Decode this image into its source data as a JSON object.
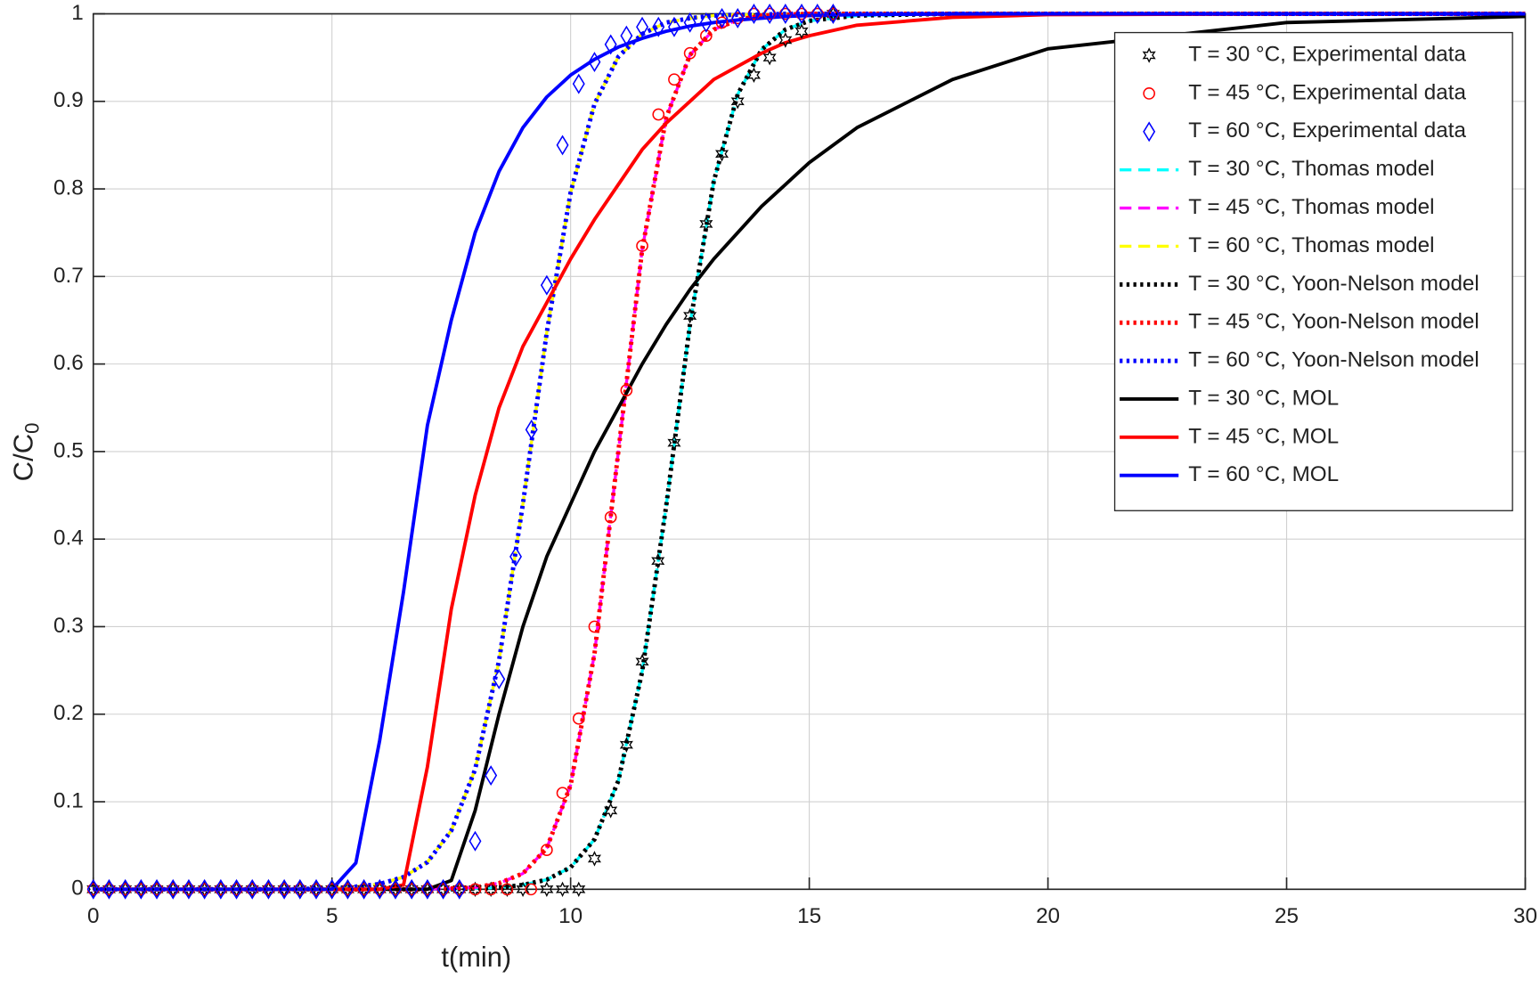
{
  "chart_data": {
    "type": "line",
    "xlabel": "t(min)",
    "ylabel": {
      "text": "C/C",
      "subscript": "0"
    },
    "xlim": [
      0,
      30
    ],
    "ylim": [
      0,
      1
    ],
    "xticks": [
      0,
      5,
      10,
      15,
      20,
      25,
      30
    ],
    "yticks": [
      0,
      0.1,
      0.2,
      0.3,
      0.4,
      0.5,
      0.6,
      0.7,
      0.8,
      0.9,
      1
    ],
    "grid": true,
    "legend": "upper right",
    "series": [
      {
        "name": "T = 30 °C, Experimental data",
        "color": "#000000",
        "style": "markers",
        "marker": "star",
        "x": [
          0,
          0.33,
          0.67,
          1,
          1.33,
          1.67,
          2,
          2.33,
          2.67,
          3,
          3.33,
          3.67,
          4,
          4.33,
          4.67,
          5,
          5.33,
          5.67,
          6,
          6.33,
          6.67,
          7,
          7.33,
          7.67,
          8,
          8.33,
          8.67,
          9,
          9.5,
          9.83,
          10.17,
          10.5,
          10.84,
          11.17,
          11.5,
          11.83,
          12.17,
          12.5,
          12.84,
          13.17,
          13.5,
          13.84,
          14.17,
          14.5,
          14.84,
          15.5
        ],
        "values": [
          0,
          0,
          0,
          0,
          0,
          0,
          0,
          0,
          0,
          0,
          0,
          0,
          0,
          0,
          0,
          0,
          0,
          0,
          0,
          0,
          0,
          0,
          0,
          0,
          0,
          0,
          0,
          0,
          0,
          0,
          0,
          0.035,
          0.09,
          0.165,
          0.26,
          0.375,
          0.51,
          0.655,
          0.76,
          0.84,
          0.9,
          0.93,
          0.95,
          0.97,
          0.98,
          1
        ]
      },
      {
        "name": "T = 45 °C, Experimental data",
        "color": "#ff0000",
        "style": "markers",
        "marker": "circle",
        "x": [
          0,
          0.33,
          0.67,
          1,
          1.33,
          1.67,
          2,
          2.33,
          2.67,
          3,
          3.33,
          3.67,
          4,
          4.33,
          4.67,
          5,
          5.33,
          5.67,
          6,
          6.33,
          6.67,
          7,
          7.33,
          7.67,
          8,
          8.33,
          8.67,
          9.17,
          9.5,
          9.83,
          10.17,
          10.5,
          10.84,
          11.17,
          11.5,
          11.84,
          12.17,
          12.5,
          12.84,
          13.17,
          13.5,
          13.84,
          14.17,
          14.5,
          14.84,
          15.17,
          15.5
        ],
        "values": [
          0,
          0,
          0,
          0,
          0,
          0,
          0,
          0,
          0,
          0,
          0,
          0,
          0,
          0,
          0,
          0,
          0,
          0,
          0,
          0,
          0,
          0,
          0,
          0,
          0,
          0,
          0,
          0,
          0.045,
          0.11,
          0.195,
          0.3,
          0.425,
          0.57,
          0.735,
          0.885,
          0.925,
          0.955,
          0.975,
          0.99,
          0.995,
          1,
          1,
          1,
          1,
          1,
          1
        ]
      },
      {
        "name": "T = 60 °C, Experimental data",
        "color": "#0000ff",
        "style": "markers",
        "marker": "diamond",
        "x": [
          0,
          0.33,
          0.67,
          1,
          1.33,
          1.67,
          2,
          2.33,
          2.67,
          3,
          3.33,
          3.67,
          4,
          4.33,
          4.67,
          5,
          5.33,
          5.67,
          6,
          6.33,
          6.67,
          7,
          7.33,
          7.67,
          8,
          8.33,
          8.5,
          8.85,
          9.18,
          9.5,
          9.83,
          10.17,
          10.5,
          10.84,
          11.17,
          11.5,
          11.84,
          12.17,
          12.5,
          12.84,
          13.17,
          13.5,
          13.84,
          14.17,
          14.5,
          14.84,
          15.17,
          15.5
        ],
        "values": [
          0,
          0,
          0,
          0,
          0,
          0,
          0,
          0,
          0,
          0,
          0,
          0,
          0,
          0,
          0,
          0,
          0,
          0,
          0,
          0,
          0,
          0,
          0,
          0,
          0.055,
          0.13,
          0.24,
          0.38,
          0.525,
          0.69,
          0.85,
          0.92,
          0.945,
          0.965,
          0.975,
          0.985,
          0.985,
          0.985,
          0.99,
          0.99,
          0.995,
          0.995,
          1,
          1,
          1,
          1,
          1,
          1
        ]
      },
      {
        "name": "T = 30 °C, Thomas model",
        "color": "#00ffff",
        "style": "dashed",
        "x": [
          0,
          2,
          4,
          5,
          5.5,
          6,
          6.5,
          7,
          7.5,
          8,
          8.5,
          9,
          9.5,
          10,
          10.5,
          11,
          11.5,
          12,
          12.5,
          13,
          13.5,
          14,
          14.5,
          15,
          16,
          18,
          20,
          25,
          30
        ],
        "values": [
          0,
          0,
          0,
          0,
          0,
          0,
          0,
          0,
          0,
          0.001,
          0.002,
          0.005,
          0.011,
          0.025,
          0.057,
          0.124,
          0.249,
          0.437,
          0.645,
          0.809,
          0.908,
          0.959,
          0.982,
          0.992,
          0.998,
          1,
          1,
          1,
          1
        ]
      },
      {
        "name": "T = 45 °C, Thomas model",
        "color": "#ff00ff",
        "style": "dashed",
        "x": [
          0,
          2,
          4,
          5,
          5.5,
          6,
          6.5,
          7,
          7.5,
          8,
          8.5,
          9,
          9.5,
          10,
          10.5,
          11,
          11.5,
          12,
          12.5,
          13,
          13.5,
          14,
          14.5,
          15,
          16,
          18,
          20,
          25,
          30
        ],
        "values": [
          0,
          0,
          0,
          0,
          0,
          0,
          0,
          0,
          0.001,
          0.002,
          0.007,
          0.018,
          0.047,
          0.119,
          0.269,
          0.5,
          0.731,
          0.881,
          0.953,
          0.982,
          0.993,
          0.998,
          0.999,
          1,
          1,
          1,
          1,
          1,
          1
        ]
      },
      {
        "name": "T = 60 °C, Thomas model",
        "color": "#ffff00",
        "style": "dashed",
        "x": [
          0,
          2,
          4,
          5,
          5.5,
          6,
          6.5,
          7,
          7.5,
          8,
          8.5,
          9,
          9.5,
          10,
          10.5,
          11,
          11.5,
          12,
          12.5,
          13,
          13.5,
          14,
          14.5,
          15,
          16,
          18,
          20,
          25,
          30
        ],
        "values": [
          0,
          0,
          0,
          0.001,
          0.003,
          0.006,
          0.014,
          0.031,
          0.067,
          0.137,
          0.261,
          0.44,
          0.636,
          0.796,
          0.897,
          0.951,
          0.977,
          0.99,
          0.995,
          0.998,
          0.999,
          0.999,
          1,
          1,
          1,
          1,
          1,
          1,
          1
        ]
      },
      {
        "name": "T = 30 °C, Yoon-Nelson model",
        "color": "#000000",
        "style": "dotted",
        "x": [
          0,
          2,
          4,
          5,
          5.5,
          6,
          6.5,
          7,
          7.5,
          8,
          8.5,
          9,
          9.5,
          10,
          10.5,
          11,
          11.5,
          12,
          12.5,
          13,
          13.5,
          14,
          14.5,
          15,
          16,
          18,
          20,
          25,
          30
        ],
        "values": [
          0,
          0,
          0,
          0,
          0,
          0,
          0,
          0,
          0,
          0.001,
          0.002,
          0.005,
          0.011,
          0.025,
          0.057,
          0.124,
          0.249,
          0.437,
          0.645,
          0.809,
          0.908,
          0.959,
          0.982,
          0.992,
          0.998,
          1,
          1,
          1,
          1
        ]
      },
      {
        "name": "T = 45 °C, Yoon-Nelson model",
        "color": "#ff0000",
        "style": "dotted",
        "x": [
          0,
          2,
          4,
          5,
          5.5,
          6,
          6.5,
          7,
          7.5,
          8,
          8.5,
          9,
          9.5,
          10,
          10.5,
          11,
          11.5,
          12,
          12.5,
          13,
          13.5,
          14,
          14.5,
          15,
          16,
          18,
          20,
          25,
          30
        ],
        "values": [
          0,
          0,
          0,
          0,
          0,
          0,
          0,
          0,
          0.001,
          0.002,
          0.007,
          0.018,
          0.047,
          0.119,
          0.269,
          0.5,
          0.731,
          0.881,
          0.953,
          0.982,
          0.993,
          0.998,
          0.999,
          1,
          1,
          1,
          1,
          1,
          1
        ]
      },
      {
        "name": "T = 60 °C, Yoon-Nelson model",
        "color": "#0000ff",
        "style": "dotted",
        "x": [
          0,
          2,
          4,
          5,
          5.5,
          6,
          6.5,
          7,
          7.5,
          8,
          8.5,
          9,
          9.5,
          10,
          10.5,
          11,
          11.5,
          12,
          12.5,
          13,
          13.5,
          14,
          14.5,
          15,
          16,
          18,
          20,
          25,
          30
        ],
        "values": [
          0,
          0,
          0,
          0.001,
          0.003,
          0.006,
          0.014,
          0.031,
          0.067,
          0.137,
          0.261,
          0.44,
          0.636,
          0.796,
          0.897,
          0.951,
          0.977,
          0.99,
          0.995,
          0.998,
          0.999,
          0.999,
          1,
          1,
          1,
          1,
          1,
          1,
          1
        ]
      },
      {
        "name": "T = 30 °C, MOL",
        "color": "#000000",
        "style": "solid",
        "x": [
          0,
          2,
          4,
          5,
          5.5,
          6,
          6.5,
          7,
          7.5,
          8,
          8.5,
          9,
          9.5,
          10,
          10.5,
          11,
          11.5,
          12,
          12.5,
          13,
          13.5,
          14,
          14.5,
          15,
          16,
          18,
          20,
          25,
          30
        ],
        "values": [
          0,
          0,
          0,
          0,
          0,
          0,
          0,
          0,
          0.01,
          0.09,
          0.2,
          0.3,
          0.38,
          0.44,
          0.5,
          0.55,
          0.6,
          0.645,
          0.685,
          0.72,
          0.75,
          0.78,
          0.805,
          0.83,
          0.87,
          0.925,
          0.96,
          0.99,
          0.997
        ]
      },
      {
        "name": "T = 45 °C, MOL",
        "color": "#ff0000",
        "style": "solid",
        "x": [
          0,
          2,
          4,
          5,
          5.5,
          6,
          6.5,
          7,
          7.5,
          8,
          8.5,
          9,
          9.5,
          10,
          10.5,
          11,
          11.5,
          12,
          12.5,
          13,
          13.5,
          14,
          14.5,
          15,
          16,
          18,
          20,
          25,
          30
        ],
        "values": [
          0,
          0,
          0,
          0,
          0,
          0,
          0.005,
          0.14,
          0.32,
          0.45,
          0.55,
          0.62,
          0.67,
          0.72,
          0.765,
          0.805,
          0.845,
          0.875,
          0.9,
          0.925,
          0.94,
          0.955,
          0.967,
          0.975,
          0.987,
          0.996,
          0.999,
          1,
          1
        ]
      },
      {
        "name": "T = 60 °C, MOL",
        "color": "#0000ff",
        "style": "solid",
        "x": [
          0,
          2,
          4,
          5,
          5.5,
          6,
          6.5,
          7,
          7.5,
          8,
          8.5,
          9,
          9.5,
          10,
          10.5,
          11,
          11.5,
          12,
          12.5,
          13,
          13.5,
          14,
          14.5,
          15,
          16,
          18,
          20,
          25,
          30
        ],
        "values": [
          0,
          0,
          0,
          0,
          0.03,
          0.17,
          0.34,
          0.53,
          0.65,
          0.75,
          0.82,
          0.87,
          0.905,
          0.93,
          0.948,
          0.962,
          0.972,
          0.98,
          0.986,
          0.99,
          0.993,
          0.995,
          0.997,
          0.998,
          0.999,
          1,
          1,
          1,
          1
        ]
      }
    ]
  }
}
